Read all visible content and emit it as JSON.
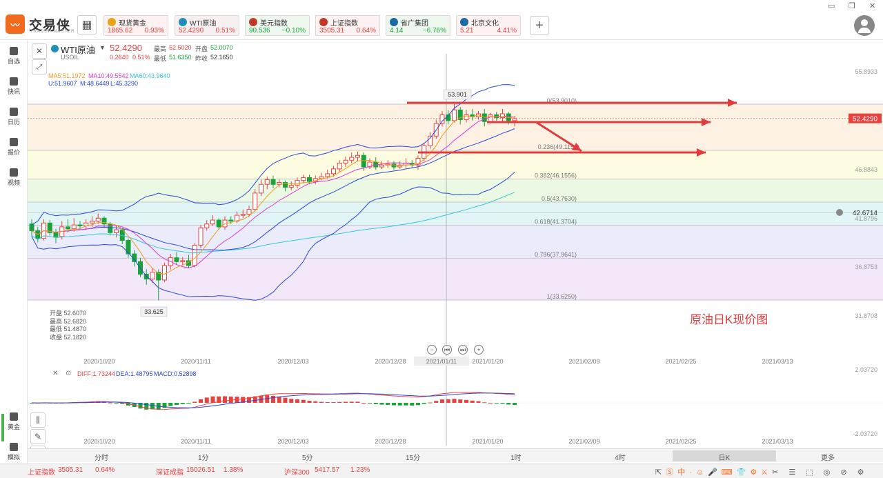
{
  "app": {
    "brand": "交易侠",
    "brand_sub": "TRADER MASTER",
    "logo": "chart-logo-icon"
  },
  "quote_tabs": [
    {
      "name": "现货黄金",
      "price": "1865.62",
      "pct": "0.93%",
      "icon_color": "#e8a317",
      "bg": "#fdf1f1"
    },
    {
      "name": "WTI原油",
      "price": "52.4290",
      "pct": "0.51%",
      "icon_color": "#1f8fb8",
      "bg": "#f7f0f0"
    },
    {
      "name": "美元指数",
      "price": "90.536",
      "pct": "−0.10%",
      "icon_color": "#c0392b",
      "bg": "#eef7ee"
    },
    {
      "name": "上证指数",
      "price": "3505.31",
      "pct": "0.64%",
      "icon_color": "#c0392b",
      "bg": "#fdf1f1"
    },
    {
      "name": "省广集团",
      "price": "4.14",
      "pct": "−6.76%",
      "icon_color": "#1a6aa8",
      "bg": "#eef7ee"
    },
    {
      "name": "北京文化",
      "price": "5.21",
      "pct": "4.41%",
      "icon_color": "#1a6aa8",
      "bg": "#fdf1f1"
    }
  ],
  "sidebar": [
    {
      "label": "自选",
      "icon": "bookmark-icon"
    },
    {
      "label": "快讯",
      "icon": "news-icon"
    },
    {
      "label": "日历",
      "icon": "calendar-icon"
    },
    {
      "label": "报价",
      "icon": "trend-icon"
    },
    {
      "label": "视频",
      "icon": "video-icon"
    }
  ],
  "sidebar_bottom": [
    {
      "label": "黄金",
      "icon": "gold-icon"
    },
    {
      "label": "模拟",
      "icon": "wallet-icon"
    }
  ],
  "symbol": {
    "name": "WTI原油",
    "code": "USOIL",
    "price": "52.4290",
    "chg": "0.2640",
    "pct": "0.51%",
    "high_label": "最高",
    "high": "52.5020",
    "open_label": "开盘",
    "open": "52.0070",
    "low_label": "最低",
    "low": "51.6350",
    "prev_label": "昨收",
    "prev": "52.1650"
  },
  "indicators": {
    "ma5": "MA5:51.1972",
    "ma10": "MA10:49.5542",
    "ma60": "MA60:43.9640",
    "u": "U:51.9607",
    "m": "M:48.6449",
    "l": "L:45.3290"
  },
  "ohlc_box": [
    {
      "label": "开盘",
      "value": "52.6070"
    },
    {
      "label": "最高",
      "value": "52.6820"
    },
    {
      "label": "最低",
      "value": "51.4870"
    },
    {
      "label": "收盘",
      "value": "52.1820"
    }
  ],
  "fib_levels": [
    "0(53.9010)",
    "0.236(49.1154)",
    "0.382(46.1556)",
    "0.5(43.7630)",
    "0.618(41.3704)",
    "0.786(37.9641)",
    "1(33.6250)"
  ],
  "price_axis": [
    "55.8933",
    "52.4290",
    "46.8843",
    "42.6714",
    "41.8796",
    "36.8753",
    "31.8708"
  ],
  "price_labels": {
    "current": "52.4290",
    "alert": "42.6714",
    "peak": "53.901",
    "trough": "33.625"
  },
  "date_axis": [
    "2020/10/20",
    "2020/11/11",
    "2020/12/03",
    "2020/12/28",
    "2021/01/11",
    "2021/01/20",
    "2021/02/09",
    "2021/02/25",
    "2021/03/13"
  ],
  "annotation": "原油日K现价图",
  "macd": {
    "diff": "DIFF:1.73244",
    "dea": "DEA:1.48795",
    "macd": "MACD:0.52898",
    "top": "2.03720",
    "bottom": "-2.03720"
  },
  "periods": [
    "分时",
    "1分",
    "5分",
    "15分",
    "1时",
    "4时",
    "日K",
    "更多"
  ],
  "active_period": "日K",
  "bottom_ticker": [
    {
      "name": "上证指数",
      "price": "3505.31",
      "pct": "0.64%"
    },
    {
      "name": "深证成指",
      "price": "15026.51",
      "pct": "1.38%"
    },
    {
      "name": "沪深300",
      "price": "5417.57",
      "pct": "1.23%"
    }
  ],
  "colors": {
    "up": "#e8423f",
    "down": "#1aa33a",
    "accent": "#f26b1d",
    "arrow": "#e23b3b"
  },
  "chart_data": {
    "type": "candlestick",
    "title": "WTI原油",
    "candles": [
      [
        41.5,
        40.8,
        42.0,
        40.2
      ],
      [
        40.8,
        40.0,
        41.2,
        39.6
      ],
      [
        40.0,
        41.6,
        42.0,
        39.8
      ],
      [
        41.6,
        40.6,
        41.9,
        40.3
      ],
      [
        40.6,
        40.2,
        41.0,
        39.5
      ],
      [
        40.2,
        41.2,
        41.8,
        39.9
      ],
      [
        41.2,
        41.0,
        42.0,
        40.6
      ],
      [
        41.0,
        41.4,
        42.1,
        40.7
      ],
      [
        41.4,
        41.3,
        41.8,
        40.9
      ],
      [
        41.3,
        41.6,
        42.0,
        40.9
      ],
      [
        41.6,
        41.8,
        42.3,
        41.2
      ],
      [
        41.8,
        42.1,
        42.6,
        41.5
      ],
      [
        42.1,
        41.5,
        42.3,
        41.1
      ],
      [
        41.5,
        40.6,
        41.7,
        40.3
      ],
      [
        40.6,
        40.9,
        41.3,
        40.1
      ],
      [
        40.9,
        39.8,
        41.0,
        39.4
      ],
      [
        39.8,
        38.4,
        40.0,
        38.0
      ],
      [
        38.4,
        37.6,
        38.8,
        37.1
      ],
      [
        37.6,
        36.3,
        38.0,
        36.0
      ],
      [
        36.3,
        35.8,
        36.8,
        35.2
      ],
      [
        35.8,
        36.5,
        36.9,
        35.4
      ],
      [
        36.5,
        35.7,
        36.8,
        33.6
      ],
      [
        35.7,
        37.2,
        37.5,
        35.5
      ],
      [
        37.2,
        38.0,
        38.4,
        36.8
      ],
      [
        38.0,
        37.6,
        38.6,
        37.3
      ],
      [
        37.6,
        37.7,
        38.1,
        37.2
      ],
      [
        37.7,
        37.2,
        38.3,
        36.9
      ],
      [
        37.2,
        39.3,
        39.5,
        37.0
      ],
      [
        39.3,
        41.1,
        41.4,
        39.0
      ],
      [
        41.1,
        41.5,
        41.9,
        40.8
      ],
      [
        41.5,
        41.9,
        42.4,
        41.3
      ],
      [
        41.9,
        41.2,
        42.1,
        40.9
      ],
      [
        41.2,
        41.9,
        42.3,
        40.9
      ],
      [
        41.9,
        41.8,
        42.3,
        41.5
      ],
      [
        41.8,
        42.4,
        42.8,
        41.6
      ],
      [
        42.4,
        42.5,
        43.0,
        42.1
      ],
      [
        42.5,
        43.0,
        43.4,
        42.2
      ],
      [
        43.0,
        44.7,
        45.1,
        42.8
      ],
      [
        44.7,
        45.6,
        46.1,
        44.4
      ],
      [
        45.6,
        46.1,
        46.4,
        45.1
      ],
      [
        46.1,
        45.6,
        46.5,
        45.2
      ],
      [
        45.6,
        45.8,
        46.1,
        45.3
      ],
      [
        45.8,
        45.3,
        46.0,
        44.9
      ],
      [
        45.3,
        45.5,
        45.9,
        45.0
      ],
      [
        45.5,
        46.0,
        46.3,
        45.2
      ],
      [
        46.0,
        46.3,
        46.6,
        45.7
      ],
      [
        46.3,
        45.9,
        46.6,
        45.6
      ],
      [
        45.9,
        46.2,
        46.5,
        45.6
      ],
      [
        46.2,
        46.4,
        46.8,
        46.0
      ],
      [
        46.4,
        46.7,
        47.1,
        46.2
      ],
      [
        46.7,
        47.2,
        47.5,
        46.4
      ],
      [
        47.2,
        47.8,
        48.1,
        46.9
      ],
      [
        47.8,
        48.1,
        48.5,
        47.4
      ],
      [
        48.1,
        48.4,
        48.9,
        47.8
      ],
      [
        48.4,
        48.6,
        49.0,
        48.0
      ],
      [
        48.6,
        47.4,
        48.9,
        47.0
      ],
      [
        47.4,
        47.9,
        48.3,
        47.2
      ],
      [
        47.9,
        47.4,
        48.4,
        47.1
      ],
      [
        47.4,
        47.6,
        48.0,
        47.2
      ],
      [
        47.6,
        47.7,
        48.1,
        47.3
      ],
      [
        47.7,
        47.4,
        48.0,
        47.1
      ],
      [
        47.4,
        47.6,
        48.0,
        47.2
      ],
      [
        47.6,
        47.8,
        48.3,
        47.3
      ],
      [
        47.8,
        47.6,
        48.1,
        47.3
      ],
      [
        47.6,
        48.3,
        48.6,
        47.1
      ],
      [
        48.3,
        49.6,
        49.9,
        48.0
      ],
      [
        49.6,
        50.6,
        51.0,
        49.3
      ],
      [
        50.6,
        51.9,
        52.3,
        50.3
      ],
      [
        51.9,
        52.8,
        53.2,
        51.6
      ],
      [
        52.8,
        52.2,
        53.3,
        51.8
      ],
      [
        52.2,
        53.3,
        53.9,
        52.0
      ],
      [
        53.3,
        52.3,
        53.6,
        51.8
      ],
      [
        52.3,
        52.8,
        53.3,
        52.0
      ],
      [
        52.8,
        52.6,
        53.4,
        52.2
      ],
      [
        52.6,
        52.9,
        53.2,
        52.3
      ],
      [
        52.9,
        52.1,
        53.4,
        51.6
      ],
      [
        52.1,
        52.8,
        53.0,
        51.9
      ],
      [
        52.8,
        52.5,
        53.1,
        52.2
      ],
      [
        52.5,
        52.9,
        53.4,
        52.1
      ],
      [
        52.9,
        52.2,
        53.1,
        51.8
      ],
      [
        52.2,
        52.4,
        52.7,
        51.6
      ]
    ]
  }
}
